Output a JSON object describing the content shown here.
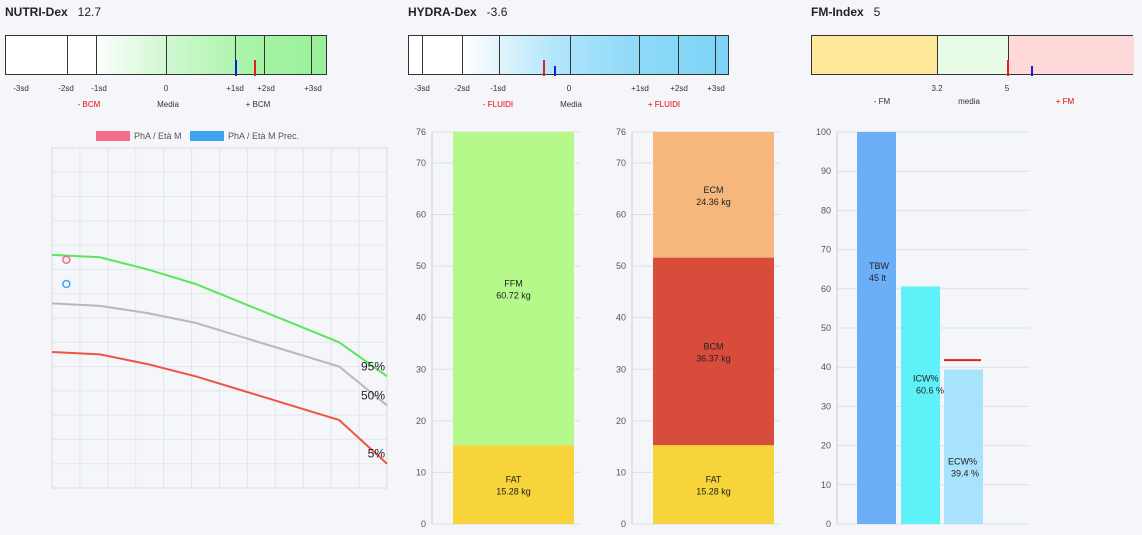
{
  "nutri": {
    "title": "NUTRI-Dex",
    "value": "12.7",
    "ticks": [
      "-3sd",
      "-2sd",
      "-1sd",
      "0",
      "+1sd",
      "+2sd",
      "+3sd"
    ],
    "sub_left": "- BCM",
    "sub_mid": "Media",
    "sub_right": "+ BCM"
  },
  "hydra": {
    "title": "HYDRA-Dex",
    "value": "-3.6",
    "ticks": [
      "-3sd",
      "-2sd",
      "-1sd",
      "0",
      "+1sd",
      "+2sd",
      "+3sd"
    ],
    "sub_left": "- FLUIDI",
    "sub_mid": "Media",
    "sub_right": "+ FLUIDI"
  },
  "fm": {
    "title": "FM-Index",
    "value": "5",
    "ticks": [
      "3.2",
      "5"
    ],
    "sub_left": "- FM",
    "sub_mid": "media",
    "sub_right": "+ FM"
  },
  "colors": {
    "red": "#e02020",
    "blue": "#1a1adf",
    "green": "#5ce65c",
    "gray": "#b8b8c0",
    "redline": "#ee5545",
    "pink": "#f46a87",
    "sky": "#3ea2ee"
  },
  "chart_data": [
    {
      "type": "line",
      "legend": [
        "PhA / Età M",
        "PhA / Età M Prec."
      ],
      "legend_colors": [
        "#f46a87",
        "#3ea2ee"
      ],
      "x": [
        0,
        1,
        2,
        3,
        4,
        5,
        6,
        7
      ],
      "series": [
        {
          "name": "95%",
          "values": [
            6.8,
            6.75,
            6.5,
            6.2,
            5.8,
            5.4,
            5.0,
            4.3
          ]
        },
        {
          "name": "50%",
          "values": [
            5.8,
            5.75,
            5.6,
            5.4,
            5.1,
            4.8,
            4.5,
            3.7
          ]
        },
        {
          "name": "5%",
          "values": [
            4.8,
            4.75,
            4.55,
            4.3,
            4.0,
            3.7,
            3.4,
            2.5
          ]
        }
      ],
      "points": [
        {
          "series": "PhA / Età M",
          "x": 0.3,
          "y": 6.7
        },
        {
          "series": "PhA / Età M Prec.",
          "x": 0.3,
          "y": 6.2
        }
      ],
      "ylim": [
        2,
        9
      ],
      "grid": true
    },
    {
      "type": "bar",
      "stacked": true,
      "ylim": [
        0,
        76
      ],
      "yticks": [
        0,
        10,
        20,
        30,
        40,
        50,
        60,
        70,
        76
      ],
      "segments": [
        {
          "name": "FAT",
          "label": "15.28 kg",
          "value": 15.28,
          "color": "#f6d43a"
        },
        {
          "name": "FFM",
          "label": "60.72 kg",
          "value": 60.72,
          "color": "#b4f98a"
        }
      ]
    },
    {
      "type": "bar",
      "stacked": true,
      "ylim": [
        0,
        76
      ],
      "yticks": [
        0,
        10,
        20,
        30,
        40,
        50,
        60,
        70,
        76
      ],
      "segments": [
        {
          "name": "FAT",
          "label": "15.28 kg",
          "value": 15.28,
          "color": "#f6d43a"
        },
        {
          "name": "BCM",
          "label": "36.37 kg",
          "value": 36.37,
          "color": "#d84c3c"
        },
        {
          "name": "ECM",
          "label": "24.36 kg",
          "value": 24.36,
          "color": "#f5b77c"
        }
      ]
    },
    {
      "type": "bar",
      "ylim": [
        0,
        100
      ],
      "yticks": [
        0,
        10,
        20,
        30,
        40,
        50,
        60,
        70,
        80,
        90,
        100
      ],
      "bars": [
        {
          "name": "TBW",
          "label": "45 lt",
          "value": 100,
          "color": "#6aaff7"
        },
        {
          "name": "ICW%",
          "label": "60.6 %",
          "value": 60.6,
          "color": "#5ef2f8"
        },
        {
          "name": "ECW%",
          "label": "39.4 %",
          "value": 39.4,
          "color": "#a9e3fb"
        }
      ],
      "reference": {
        "value": 41.8,
        "color": "#e02020"
      }
    }
  ]
}
